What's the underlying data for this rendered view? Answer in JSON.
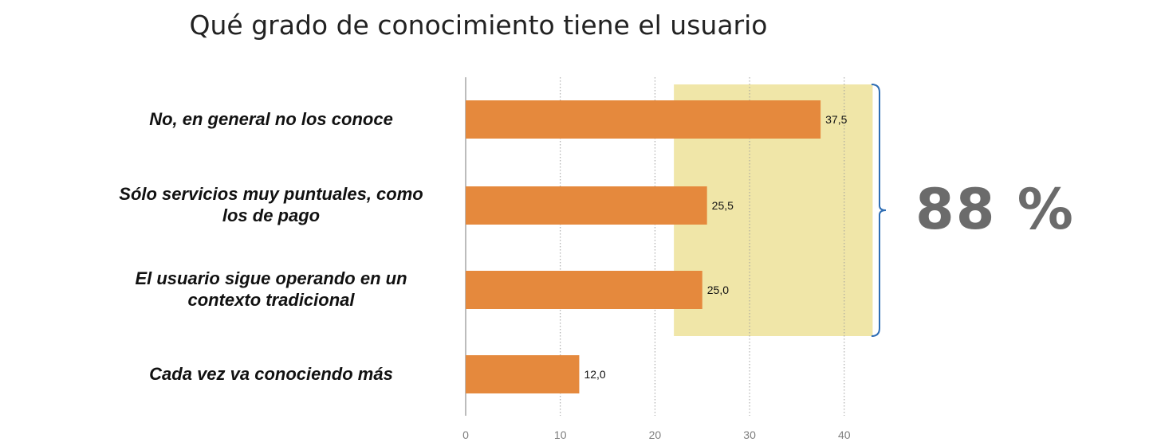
{
  "chart_data": {
    "type": "bar",
    "orientation": "horizontal",
    "title": "Qué grado de conocimiento tiene el usuario",
    "categories": [
      "No, en general no los conoce",
      "Sólo servicios muy puntuales, como los de pago",
      "El usuario sigue operando en un contexto tradicional",
      "Cada vez va conociendo más"
    ],
    "category_lines": [
      [
        "No, en general no los conoce"
      ],
      [
        "Sólo servicios muy puntuales, como",
        "los de pago"
      ],
      [
        "El usuario sigue operando en un",
        "contexto tradicional"
      ],
      [
        "Cada vez va conociendo más"
      ]
    ],
    "values": [
      37.5,
      25.5,
      25.0,
      12.0
    ],
    "value_labels": [
      "37,5",
      "25,5",
      "25,0",
      "12,0"
    ],
    "xlim": [
      0,
      43
    ],
    "xticks": [
      0,
      10,
      20,
      30,
      40
    ],
    "grid": "vertical dotted",
    "highlight": {
      "x_range": [
        22,
        43
      ],
      "rows": [
        0,
        1,
        2
      ],
      "label": "88 %"
    }
  },
  "colors": {
    "bar": "#E5893D",
    "highlight": "#F0E6A8",
    "bracket": "#2E6DB4",
    "axis": "#A6A6A6",
    "grid": "#9E9E9E",
    "total_text": "#6B6B6B"
  }
}
